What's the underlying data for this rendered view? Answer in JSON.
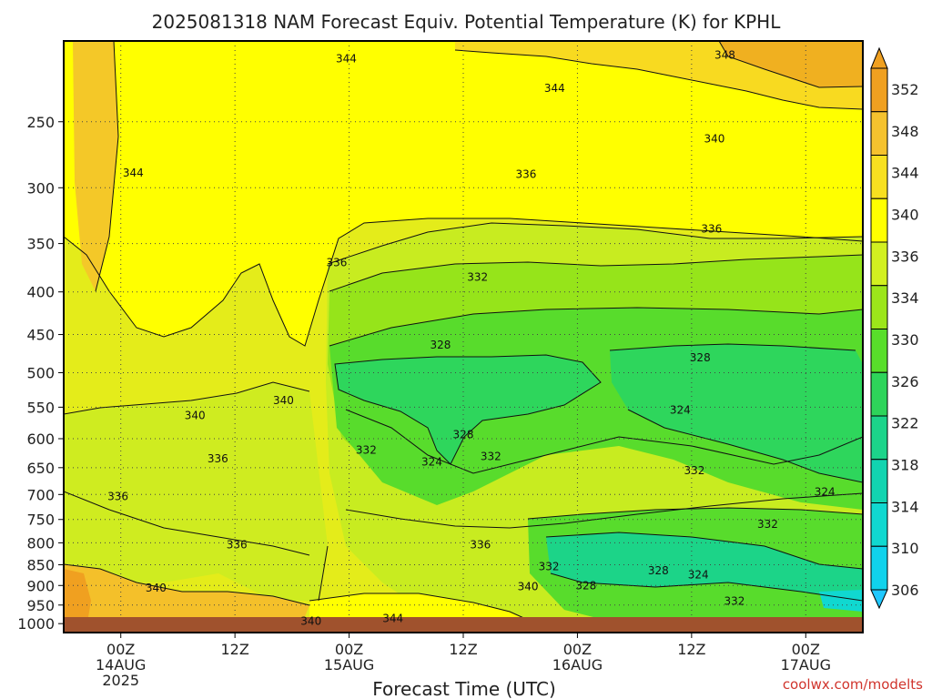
{
  "chart_data": {
    "type": "heatmap",
    "title": "2025081318 NAM Forecast Equiv. Potential Temperature (K) for KPHL",
    "xlabel": "Forecast Time (UTC)",
    "ylabel": "",
    "credit": "coolwx.com/modelts",
    "x_ticks": [
      {
        "hour": 6,
        "line1": "00Z",
        "line2": "14AUG",
        "line3": "2025"
      },
      {
        "hour": 18,
        "line1": "12Z",
        "line2": "",
        "line3": ""
      },
      {
        "hour": 30,
        "line1": "00Z",
        "line2": "15AUG",
        "line3": ""
      },
      {
        "hour": 42,
        "line1": "12Z",
        "line2": "",
        "line3": ""
      },
      {
        "hour": 54,
        "line1": "00Z",
        "line2": "16AUG",
        "line3": ""
      },
      {
        "hour": 66,
        "line1": "12Z",
        "line2": "",
        "line3": ""
      },
      {
        "hour": 78,
        "line1": "00Z",
        "line2": "17AUG",
        "line3": ""
      }
    ],
    "x_range_hours": [
      0,
      84
    ],
    "y_ticks": [
      "250",
      "300",
      "350",
      "400",
      "450",
      "500",
      "550",
      "600",
      "650",
      "700",
      "750",
      "800",
      "850",
      "900",
      "950",
      "1000"
    ],
    "y_range_hpa": [
      200,
      1025
    ],
    "y_scale": "log",
    "colorbar": {
      "labels": [
        "352",
        "348",
        "344",
        "340",
        "336",
        "334",
        "330",
        "326",
        "322",
        "318",
        "314",
        "310",
        "306"
      ],
      "colors": [
        "#f0a020",
        "#f5c22e",
        "#f8e020",
        "#ffff00",
        "#d2f020",
        "#9ce61a",
        "#58de2a",
        "#2ed45a",
        "#1cd48a",
        "#12d4b0",
        "#10d8d0",
        "#10d2ec",
        "#20c8ff"
      ]
    },
    "contour_labels": [
      {
        "text": "344",
        "hour": 29.7,
        "p": 210
      },
      {
        "text": "348",
        "hour": 69.5,
        "p": 208
      },
      {
        "text": "344",
        "hour": 51.6,
        "p": 228
      },
      {
        "text": "340",
        "hour": 68.4,
        "p": 262
      },
      {
        "text": "344",
        "hour": 7.3,
        "p": 288
      },
      {
        "text": "336",
        "hour": 48.6,
        "p": 289
      },
      {
        "text": "336",
        "hour": 68.1,
        "p": 336
      },
      {
        "text": "336",
        "hour": 28.7,
        "p": 369
      },
      {
        "text": "332",
        "hour": 43.5,
        "p": 384
      },
      {
        "text": "328",
        "hour": 39.6,
        "p": 463
      },
      {
        "text": "328",
        "hour": 66.9,
        "p": 480
      },
      {
        "text": "340",
        "hour": 23.1,
        "p": 540
      },
      {
        "text": "340",
        "hour": 13.8,
        "p": 563
      },
      {
        "text": "324",
        "hour": 64.8,
        "p": 554
      },
      {
        "text": "328",
        "hour": 42.0,
        "p": 593
      },
      {
        "text": "332",
        "hour": 31.8,
        "p": 619
      },
      {
        "text": "332",
        "hour": 44.9,
        "p": 630
      },
      {
        "text": "324",
        "hour": 38.7,
        "p": 640
      },
      {
        "text": "336",
        "hour": 16.2,
        "p": 634
      },
      {
        "text": "332",
        "hour": 66.3,
        "p": 655
      },
      {
        "text": "324",
        "hour": 80.0,
        "p": 695
      },
      {
        "text": "336",
        "hour": 5.7,
        "p": 704
      },
      {
        "text": "332",
        "hour": 74.0,
        "p": 760
      },
      {
        "text": "336",
        "hour": 18.2,
        "p": 804
      },
      {
        "text": "336",
        "hour": 43.8,
        "p": 804
      },
      {
        "text": "332",
        "hour": 51.0,
        "p": 854
      },
      {
        "text": "328",
        "hour": 62.5,
        "p": 864
      },
      {
        "text": "324",
        "hour": 66.7,
        "p": 874
      },
      {
        "text": "340",
        "hour": 9.7,
        "p": 906
      },
      {
        "text": "340",
        "hour": 48.8,
        "p": 903
      },
      {
        "text": "328",
        "hour": 54.9,
        "p": 900
      },
      {
        "text": "332",
        "hour": 70.5,
        "p": 940
      },
      {
        "text": "344",
        "hour": 34.6,
        "p": 986
      },
      {
        "text": "340",
        "hour": 26.0,
        "p": 993
      }
    ]
  }
}
